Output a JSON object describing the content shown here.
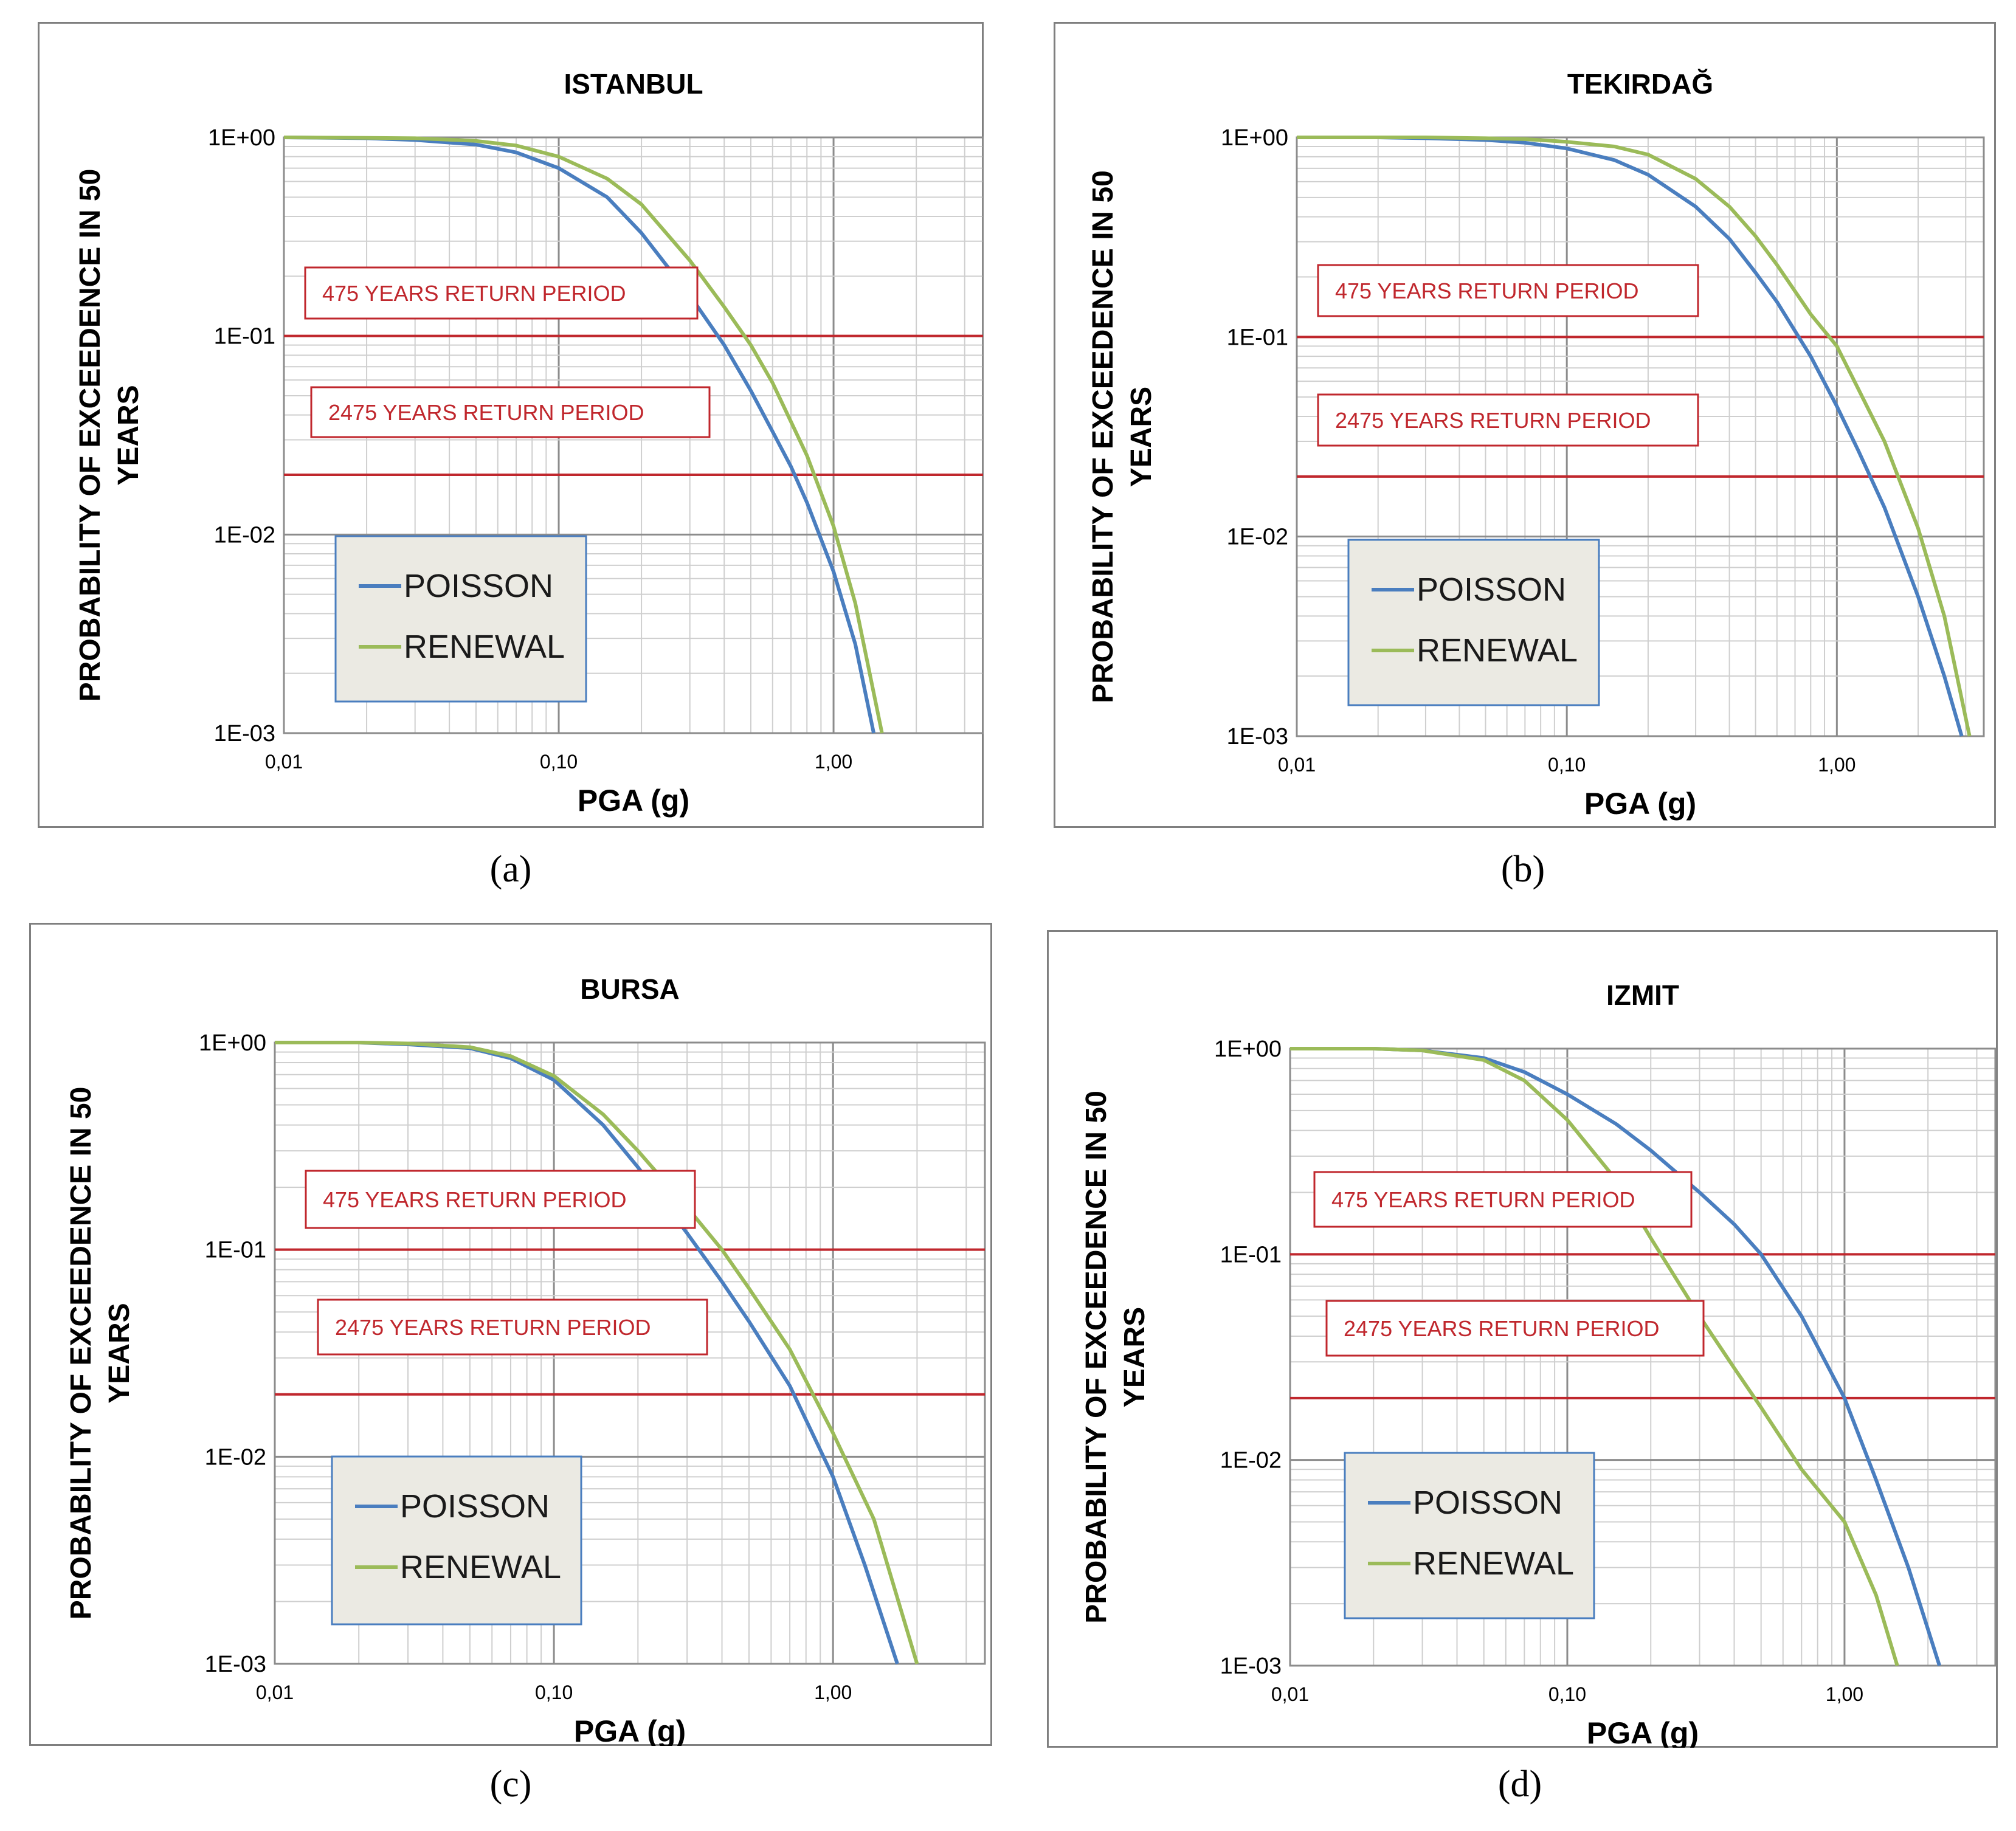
{
  "figure": {
    "captions": [
      "(a)",
      "(b)",
      "(c)",
      "(d)"
    ]
  },
  "chart_data": [
    {
      "type": "line",
      "panel": "a",
      "title": "ISTANBUL",
      "xlabel": "PGA (g)",
      "ylabel_lines": [
        "PROBABILITY OF EXCEEDENCE IN 50",
        "YEARS"
      ],
      "xscale": "log",
      "yscale": "log",
      "xlim": [
        0.01,
        3.5
      ],
      "ylim": [
        0.001,
        1
      ],
      "x_ticks": [
        0.01,
        0.1,
        1
      ],
      "x_tick_labels": [
        "0,01",
        "0,10",
        "1,00"
      ],
      "y_ticks": [
        1,
        0.1,
        0.01,
        0.001
      ],
      "y_tick_labels": [
        "1E+00",
        "1E-01",
        "1E-02",
        "1E-03"
      ],
      "grid": true,
      "reference_lines": [
        {
          "y": 0.1,
          "label": "475 YEARS RETURN PERIOD",
          "color": "#c0272d"
        },
        {
          "y": 0.02,
          "label": "2475 YEARS RETURN PERIOD",
          "color": "#c0272d"
        }
      ],
      "legend": {
        "position": "bottom-left",
        "entries": [
          "POISSON",
          "RENEWAL"
        ]
      },
      "series": [
        {
          "name": "POISSON",
          "color": "#4a7ebf",
          "x": [
            0.01,
            0.02,
            0.03,
            0.05,
            0.07,
            0.1,
            0.15,
            0.2,
            0.3,
            0.4,
            0.5,
            0.6,
            0.7,
            0.8,
            1.0,
            1.2,
            1.4
          ],
          "y": [
            1.0,
            0.99,
            0.97,
            0.92,
            0.84,
            0.7,
            0.5,
            0.33,
            0.16,
            0.09,
            0.053,
            0.033,
            0.022,
            0.0145,
            0.0065,
            0.0028,
            0.001
          ]
        },
        {
          "name": "RENEWAL",
          "color": "#9bbb59",
          "x": [
            0.01,
            0.02,
            0.03,
            0.05,
            0.07,
            0.1,
            0.15,
            0.2,
            0.3,
            0.4,
            0.5,
            0.6,
            0.7,
            0.8,
            1.0,
            1.2,
            1.5
          ],
          "y": [
            1.0,
            0.995,
            0.99,
            0.96,
            0.91,
            0.8,
            0.62,
            0.46,
            0.24,
            0.14,
            0.09,
            0.058,
            0.037,
            0.025,
            0.011,
            0.0045,
            0.001
          ]
        }
      ]
    },
    {
      "type": "line",
      "panel": "b",
      "title": "TEKIRDAĞ",
      "xlabel": "PGA (g)",
      "ylabel_lines": [
        "PROBABILITY OF EXCEEDENCE IN 50",
        "YEARS"
      ],
      "xscale": "log",
      "yscale": "log",
      "xlim": [
        0.01,
        3.5
      ],
      "ylim": [
        0.001,
        1
      ],
      "x_ticks": [
        0.01,
        0.1,
        1
      ],
      "x_tick_labels": [
        "0,01",
        "0,10",
        "1,00"
      ],
      "y_ticks": [
        1,
        0.1,
        0.01,
        0.001
      ],
      "y_tick_labels": [
        "1E+00",
        "1E-01",
        "1E-02",
        "1E-03"
      ],
      "grid": true,
      "reference_lines": [
        {
          "y": 0.1,
          "label": "475 YEARS RETURN PERIOD",
          "color": "#c0272d"
        },
        {
          "y": 0.02,
          "label": "2475 YEARS RETURN PERIOD",
          "color": "#c0272d"
        }
      ],
      "legend": {
        "position": "bottom-left",
        "entries": [
          "POISSON",
          "RENEWAL"
        ]
      },
      "series": [
        {
          "name": "POISSON",
          "color": "#4a7ebf",
          "x": [
            0.01,
            0.02,
            0.03,
            0.05,
            0.07,
            0.1,
            0.15,
            0.2,
            0.3,
            0.4,
            0.5,
            0.6,
            0.8,
            1.0,
            1.2,
            1.5,
            2.0,
            2.5,
            2.9
          ],
          "y": [
            1.0,
            1.0,
            0.99,
            0.97,
            0.94,
            0.88,
            0.77,
            0.65,
            0.45,
            0.31,
            0.21,
            0.15,
            0.08,
            0.045,
            0.027,
            0.014,
            0.005,
            0.002,
            0.001
          ]
        },
        {
          "name": "RENEWAL",
          "color": "#9bbb59",
          "x": [
            0.01,
            0.02,
            0.03,
            0.05,
            0.07,
            0.1,
            0.15,
            0.2,
            0.3,
            0.4,
            0.5,
            0.6,
            0.8,
            1.0,
            1.2,
            1.5,
            2.0,
            2.5,
            3.1
          ],
          "y": [
            1.0,
            1.0,
            1.0,
            0.99,
            0.98,
            0.95,
            0.9,
            0.82,
            0.62,
            0.45,
            0.32,
            0.23,
            0.13,
            0.09,
            0.055,
            0.03,
            0.011,
            0.004,
            0.001
          ]
        }
      ]
    },
    {
      "type": "line",
      "panel": "c",
      "title": "BURSA",
      "xlabel": "PGA (g)",
      "ylabel_lines": [
        "PROBABILITY OF EXCEEDENCE IN 50",
        "YEARS"
      ],
      "xscale": "log",
      "yscale": "log",
      "xlim": [
        0.01,
        3.5
      ],
      "ylim": [
        0.001,
        1
      ],
      "x_ticks": [
        0.01,
        0.1,
        1
      ],
      "x_tick_labels": [
        "0,01",
        "0,10",
        "1,00"
      ],
      "y_ticks": [
        1,
        0.1,
        0.01,
        0.001
      ],
      "y_tick_labels": [
        "1E+00",
        "1E-01",
        "1E-02",
        "1E-03"
      ],
      "grid": true,
      "reference_lines": [
        {
          "y": 0.1,
          "label": "475 YEARS RETURN PERIOD",
          "color": "#c0272d"
        },
        {
          "y": 0.02,
          "label": "2475 YEARS RETURN PERIOD",
          "color": "#c0272d"
        }
      ],
      "legend": {
        "position": "bottom-left",
        "entries": [
          "POISSON",
          "RENEWAL"
        ]
      },
      "series": [
        {
          "name": "POISSON",
          "color": "#4a7ebf",
          "x": [
            0.01,
            0.02,
            0.03,
            0.05,
            0.07,
            0.1,
            0.15,
            0.2,
            0.3,
            0.4,
            0.5,
            0.7,
            1.0,
            1.3,
            1.7
          ],
          "y": [
            1.0,
            1.0,
            0.98,
            0.94,
            0.84,
            0.66,
            0.4,
            0.25,
            0.12,
            0.07,
            0.045,
            0.022,
            0.008,
            0.003,
            0.001
          ]
        },
        {
          "name": "RENEWAL",
          "color": "#9bbb59",
          "x": [
            0.01,
            0.02,
            0.03,
            0.05,
            0.07,
            0.1,
            0.15,
            0.2,
            0.3,
            0.4,
            0.5,
            0.7,
            1.0,
            1.4,
            2.0
          ],
          "y": [
            1.0,
            1.0,
            0.99,
            0.95,
            0.86,
            0.69,
            0.45,
            0.3,
            0.16,
            0.1,
            0.065,
            0.033,
            0.013,
            0.005,
            0.001
          ]
        }
      ]
    },
    {
      "type": "line",
      "panel": "d",
      "title": "IZMIT",
      "xlabel": "PGA (g)",
      "ylabel_lines": [
        "PROBABILITY OF EXCEEDENCE IN 50",
        "YEARS"
      ],
      "xscale": "log",
      "yscale": "log",
      "xlim": [
        0.01,
        3.5
      ],
      "ylim": [
        0.001,
        1
      ],
      "x_ticks": [
        0.01,
        0.1,
        1
      ],
      "x_tick_labels": [
        "0,01",
        "0,10",
        "1,00"
      ],
      "y_ticks": [
        1,
        0.1,
        0.01,
        0.001
      ],
      "y_tick_labels": [
        "1E+00",
        "1E-01",
        "1E-02",
        "1E-03"
      ],
      "grid": true,
      "reference_lines": [
        {
          "y": 0.1,
          "label": "475 YEARS RETURN PERIOD",
          "color": "#c0272d"
        },
        {
          "y": 0.02,
          "label": "2475 YEARS RETURN PERIOD",
          "color": "#c0272d"
        }
      ],
      "legend": {
        "position": "bottom-left",
        "entries": [
          "POISSON",
          "RENEWAL"
        ]
      },
      "series": [
        {
          "name": "POISSON",
          "color": "#4a7ebf",
          "x": [
            0.01,
            0.02,
            0.03,
            0.05,
            0.07,
            0.1,
            0.15,
            0.2,
            0.3,
            0.4,
            0.5,
            0.7,
            1.0,
            1.3,
            1.7,
            2.2
          ],
          "y": [
            1.0,
            1.0,
            0.98,
            0.9,
            0.77,
            0.6,
            0.43,
            0.32,
            0.2,
            0.14,
            0.1,
            0.05,
            0.02,
            0.008,
            0.003,
            0.001
          ]
        },
        {
          "name": "RENEWAL",
          "color": "#9bbb59",
          "x": [
            0.01,
            0.02,
            0.03,
            0.05,
            0.07,
            0.1,
            0.15,
            0.2,
            0.3,
            0.4,
            0.5,
            0.7,
            1.0,
            1.3,
            1.55
          ],
          "y": [
            1.0,
            1.0,
            0.98,
            0.88,
            0.7,
            0.45,
            0.23,
            0.12,
            0.05,
            0.028,
            0.018,
            0.009,
            0.005,
            0.0022,
            0.001
          ]
        }
      ]
    }
  ]
}
